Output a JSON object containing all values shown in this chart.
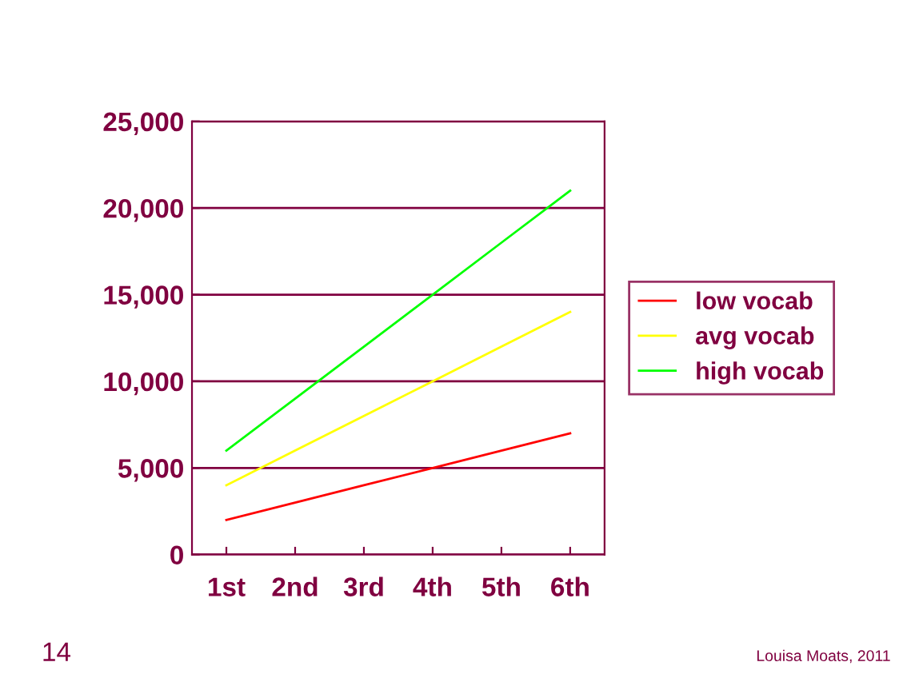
{
  "chart_data": {
    "type": "line",
    "categories": [
      "1st",
      "2nd",
      "3rd",
      "4th",
      "5th",
      "6th"
    ],
    "series": [
      {
        "name": "low vocab",
        "color": "#ff0000",
        "values": [
          2000,
          3000,
          4000,
          5000,
          6000,
          7000
        ]
      },
      {
        "name": "avg vocab",
        "color": "#ffff00",
        "values": [
          4000,
          6000,
          8000,
          10000,
          12000,
          14000
        ]
      },
      {
        "name": "high vocab",
        "color": "#00ff00",
        "values": [
          6000,
          9000,
          12000,
          15000,
          18000,
          21000
        ]
      }
    ],
    "ylim": [
      0,
      25000
    ],
    "yticks": [
      {
        "value": 0,
        "label": "0"
      },
      {
        "value": 5000,
        "label": "5,000"
      },
      {
        "value": 10000,
        "label": "10,000"
      },
      {
        "value": 15000,
        "label": "15,000"
      },
      {
        "value": 20000,
        "label": "20,000"
      },
      {
        "value": 25000,
        "label": "25,000"
      }
    ],
    "grid": "y",
    "legend": "right",
    "marker": "none",
    "line_style": "solid",
    "annotations": [
      "14",
      "Louisa Moats, 2011"
    ]
  }
}
